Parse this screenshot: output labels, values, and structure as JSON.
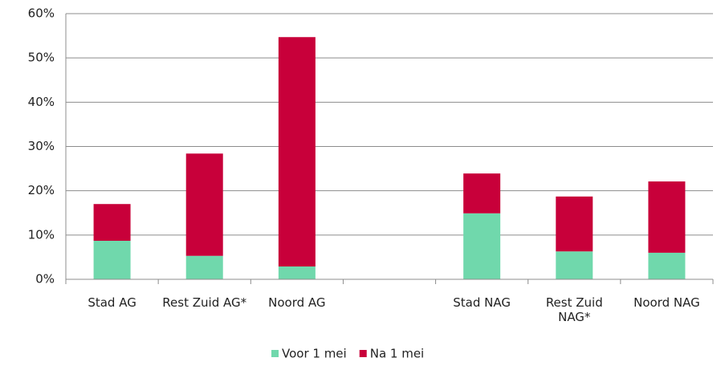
{
  "chart_data": {
    "type": "stacked_bar",
    "categories": [
      "Stad AG",
      "Rest Zuid AG*",
      "Noord AG",
      null,
      "Stad NAG",
      "Rest Zuid NAG*",
      "Noord NAG"
    ],
    "series": [
      {
        "name": "Voor 1 mei",
        "color": "#70d8ac",
        "values": [
          8.7,
          5.3,
          2.9,
          null,
          14.9,
          6.3,
          6.0
        ]
      },
      {
        "name": "Na 1 mei",
        "color": "#c8003a",
        "values": [
          8.3,
          23.1,
          51.8,
          null,
          9.0,
          12.4,
          16.1
        ]
      }
    ],
    "ylim": [
      0,
      60
    ],
    "yticks": [
      {
        "value": 0,
        "label": "0%"
      },
      {
        "value": 10,
        "label": "10%"
      },
      {
        "value": 20,
        "label": "20%"
      },
      {
        "value": 30,
        "label": "30%"
      },
      {
        "value": 40,
        "label": "40%"
      },
      {
        "value": 50,
        "label": "50%"
      },
      {
        "value": 60,
        "label": "60%"
      }
    ],
    "grid": true,
    "legend": "bottom"
  }
}
